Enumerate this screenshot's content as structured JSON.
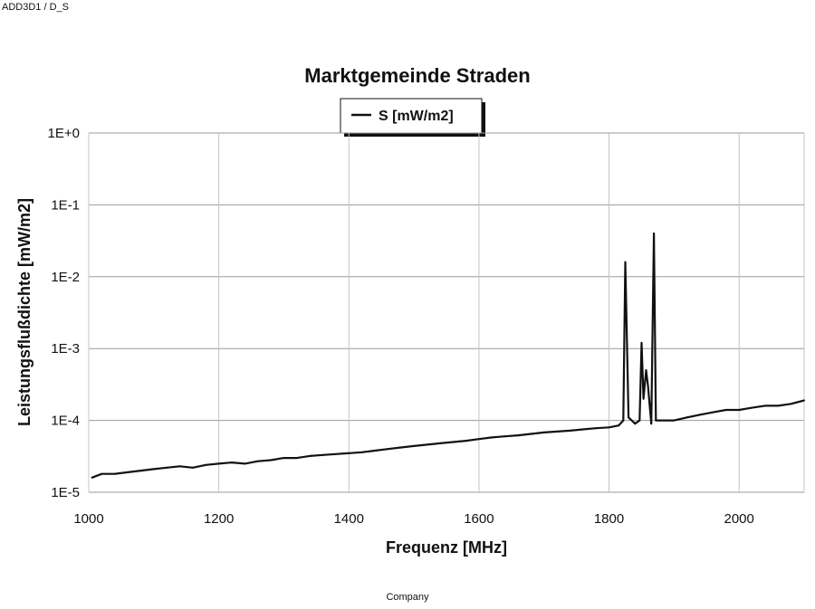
{
  "header": {
    "doc_id": "ADD3D1 / D_S"
  },
  "footer": {
    "text": "Company"
  },
  "chart_data": {
    "type": "line",
    "title": "Marktgemeinde Straden",
    "xlabel": "Frequenz [MHz]",
    "ylabel": "Leistungsflußdichte [mW/m2]",
    "xlim": [
      1000,
      2100
    ],
    "ylim": [
      1e-05,
      1
    ],
    "y_scale": "log",
    "x_ticks": [
      1000,
      1200,
      1400,
      1600,
      1800,
      2000
    ],
    "y_ticks": [
      {
        "value": 1,
        "label": "1E+0"
      },
      {
        "value": 0.1,
        "label": "1E-1"
      },
      {
        "value": 0.01,
        "label": "1E-2"
      },
      {
        "value": 0.001,
        "label": "1E-3"
      },
      {
        "value": 0.0001,
        "label": "1E-4"
      },
      {
        "value": 1e-05,
        "label": "1E-5"
      }
    ],
    "grid": true,
    "legend_position": "top-center",
    "series": [
      {
        "name": "S [mW/m2]",
        "color": "#111111",
        "x": [
          1005,
          1020,
          1040,
          1060,
          1080,
          1100,
          1120,
          1140,
          1160,
          1180,
          1200,
          1220,
          1240,
          1260,
          1280,
          1300,
          1320,
          1340,
          1360,
          1380,
          1400,
          1420,
          1440,
          1460,
          1480,
          1500,
          1520,
          1540,
          1560,
          1580,
          1600,
          1620,
          1640,
          1660,
          1680,
          1700,
          1720,
          1740,
          1760,
          1780,
          1800,
          1815,
          1822,
          1825,
          1830,
          1840,
          1847,
          1850,
          1853,
          1857,
          1860,
          1865,
          1869,
          1872,
          1875,
          1880,
          1900,
          1920,
          1940,
          1960,
          1980,
          2000,
          2020,
          2040,
          2060,
          2080,
          2100
        ],
        "y": [
          1.6e-05,
          1.8e-05,
          1.8e-05,
          1.9e-05,
          2e-05,
          2.1e-05,
          2.2e-05,
          2.3e-05,
          2.2e-05,
          2.4e-05,
          2.5e-05,
          2.6e-05,
          2.5e-05,
          2.7e-05,
          2.8e-05,
          3e-05,
          3e-05,
          3.2e-05,
          3.3e-05,
          3.4e-05,
          3.5e-05,
          3.6e-05,
          3.8e-05,
          4e-05,
          4.2e-05,
          4.4e-05,
          4.6e-05,
          4.8e-05,
          5e-05,
          5.2e-05,
          5.5e-05,
          5.8e-05,
          6e-05,
          6.2e-05,
          6.5e-05,
          6.8e-05,
          7e-05,
          7.2e-05,
          7.5e-05,
          7.8e-05,
          8e-05,
          8.5e-05,
          0.0001,
          0.016,
          0.00011,
          9e-05,
          0.0001,
          0.0012,
          0.0002,
          0.0005,
          0.0003,
          9e-05,
          0.04,
          0.0001,
          0.0001,
          0.0001,
          0.0001,
          0.00011,
          0.00012,
          0.00013,
          0.00014,
          0.00014,
          0.00015,
          0.00016,
          0.00016,
          0.00017,
          0.00019
        ]
      }
    ]
  }
}
